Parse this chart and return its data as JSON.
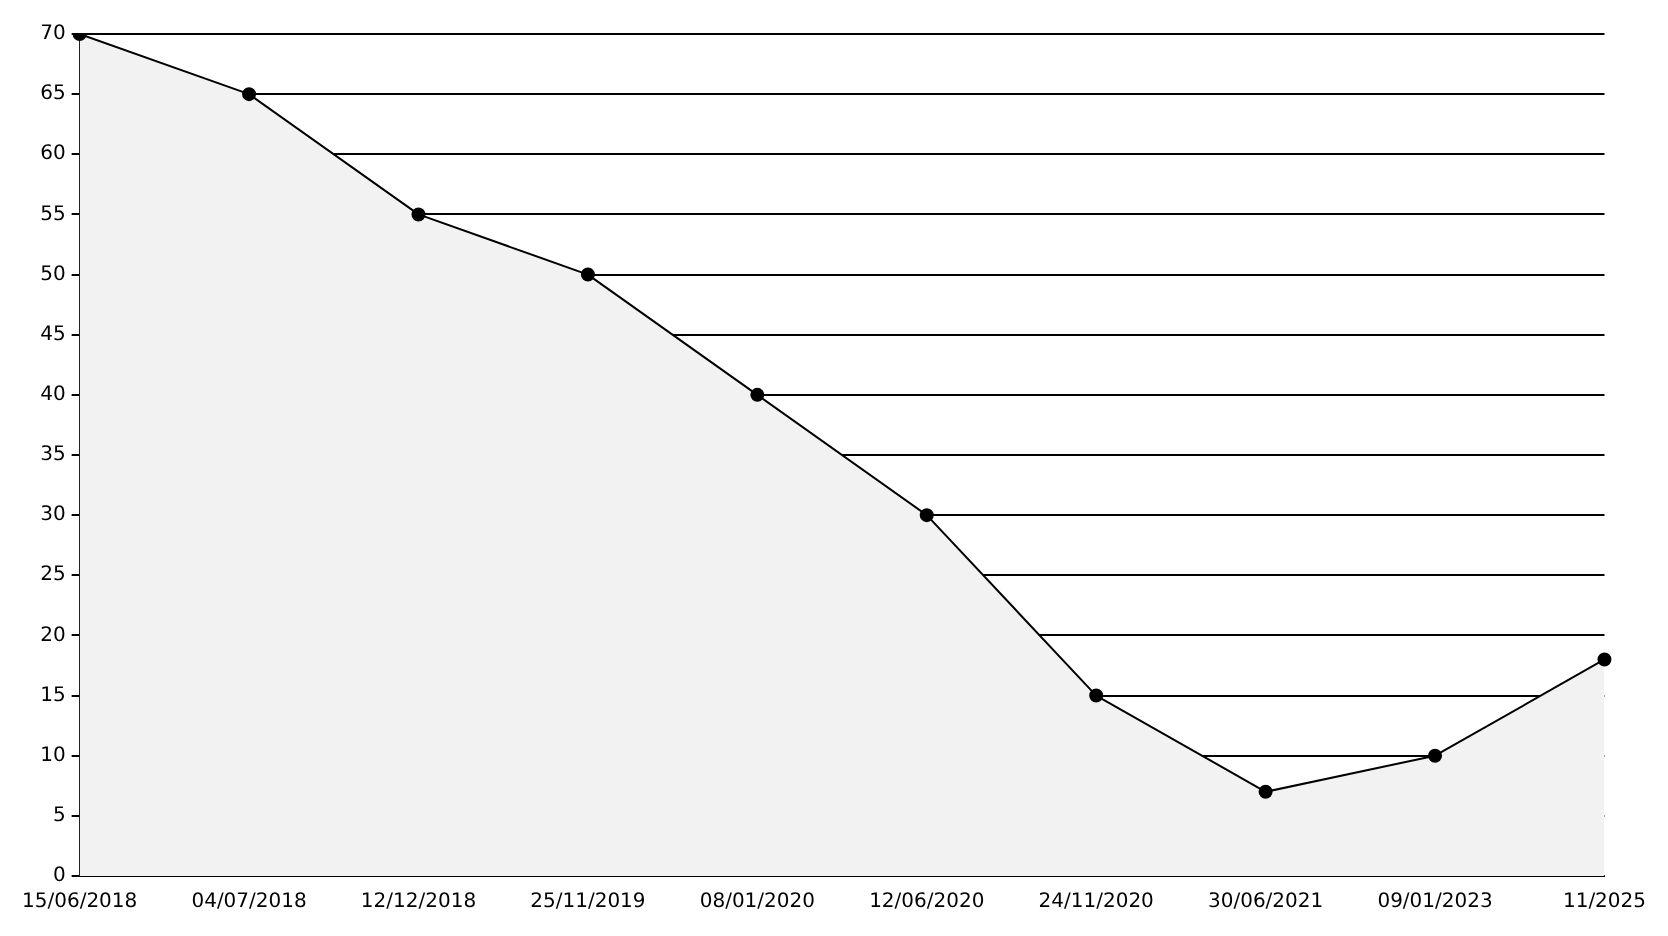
{
  "chart_data": {
    "type": "area",
    "categories": [
      "15/06/2018",
      "04/07/2018",
      "12/12/2018",
      "25/11/2019",
      "08/01/2020",
      "12/06/2020",
      "24/11/2020",
      "30/06/2021",
      "09/01/2023",
      "11/2025"
    ],
    "series": [
      {
        "color": "#000000",
        "values": [
          70,
          65,
          55,
          50,
          40,
          30,
          15,
          7,
          10,
          18
        ]
      }
    ],
    "ylim": [
      0,
      70
    ],
    "yticks": [
      0,
      5,
      10,
      15,
      20,
      25,
      30,
      35,
      40,
      45,
      50,
      55,
      60,
      65,
      70
    ],
    "grid": "y",
    "marker": "circle",
    "legend": false
  }
}
